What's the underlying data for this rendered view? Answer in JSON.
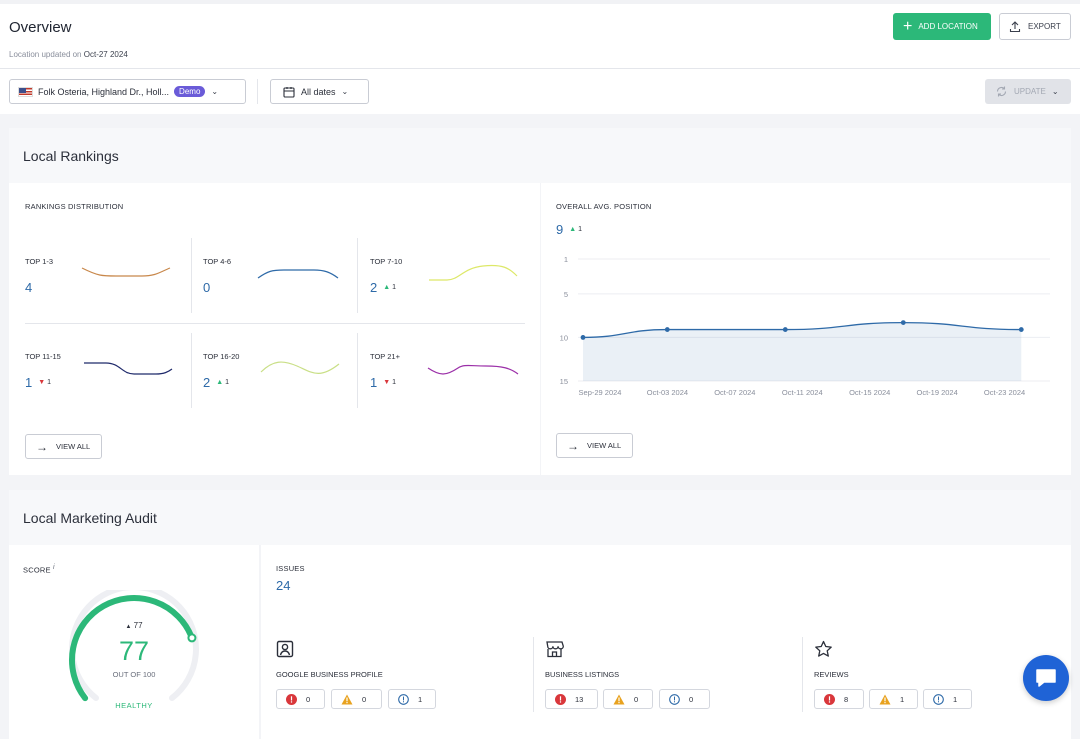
{
  "header": {
    "title": "Overview",
    "updated_prefix": "Location updated on",
    "updated_date": "Oct-27 2024",
    "add_location_label": "ADD LOCATION",
    "export_label": "EXPORT"
  },
  "filters": {
    "location": "Folk Osteria, Highland Dr., Holl...",
    "location_badge": "Demo",
    "dates": "All dates",
    "update_label": "UPDATE"
  },
  "local_rankings": {
    "title": "Local Rankings",
    "distribution_label": "RANKINGS DISTRIBUTION",
    "buckets": [
      {
        "label": "TOP 1-3",
        "value": "4",
        "delta": "",
        "dir": "",
        "color": "#c8874a"
      },
      {
        "label": "TOP 4-6",
        "value": "0",
        "delta": "",
        "dir": "",
        "color": "#2e6aa8"
      },
      {
        "label": "TOP 7-10",
        "value": "2",
        "delta": "1",
        "dir": "up",
        "color": "#dde868"
      },
      {
        "label": "TOP 11-15",
        "value": "1",
        "delta": "1",
        "dir": "down",
        "color": "#1f2a6b"
      },
      {
        "label": "TOP 16-20",
        "value": "2",
        "delta": "1",
        "dir": "up",
        "color": "#c9df86"
      },
      {
        "label": "TOP 21+",
        "value": "1",
        "delta": "1",
        "dir": "down",
        "color": "#9b2fa8"
      }
    ],
    "view_all_label": "VIEW ALL",
    "avg_label": "OVERALL AVG. POSITION",
    "avg_value": "9",
    "avg_delta": "1",
    "avg_view_all_label": "VIEW ALL"
  },
  "chart_data": {
    "type": "line",
    "title": "OVERALL AVG. POSITION",
    "x": [
      "Sep-29 2024",
      "Oct-04 2024",
      "Oct-11 2024",
      "Oct-18 2024",
      "Oct-25 2024"
    ],
    "x_tick_labels": [
      "Sep-29 2024",
      "Oct-03 2024",
      "Oct-07 2024",
      "Oct-11 2024",
      "Oct-15 2024",
      "Oct-19 2024",
      "Oct-23 2024"
    ],
    "series": [
      {
        "values": [
          10,
          9.1,
          9.1,
          8.3,
          9.1
        ]
      }
    ],
    "y_tick_labels": [
      "1",
      "5",
      "10",
      "15"
    ],
    "ylim": [
      1,
      15
    ],
    "y_inverted": true,
    "grid": true,
    "color": "#2e6aa8"
  },
  "audit": {
    "title": "Local Marketing Audit",
    "score_label": "SCORE",
    "score_info": "i",
    "score_value": "77",
    "score_delta": "77",
    "score_fraction": 0.77,
    "score_out_of": "OUT OF 100",
    "score_status": "HEALTHY",
    "issues_label": "ISSUES",
    "issues_value": "24",
    "groups": [
      {
        "label": "GOOGLE BUSINESS PROFILE",
        "icon": "profile-icon",
        "errors": "0",
        "warnings": "0",
        "notices": "1"
      },
      {
        "label": "BUSINESS LISTINGS",
        "icon": "store-icon",
        "errors": "13",
        "warnings": "0",
        "notices": "0"
      },
      {
        "label": "REVIEWS",
        "icon": "star-icon",
        "errors": "8",
        "warnings": "1",
        "notices": "1"
      }
    ]
  },
  "colors": {
    "accent_green": "#2cb879",
    "accent_blue": "#2e6aa8",
    "error": "#d9373b",
    "warning": "#e8a21f",
    "notice": "#2e6aa8",
    "chat": "#1f63d6"
  }
}
